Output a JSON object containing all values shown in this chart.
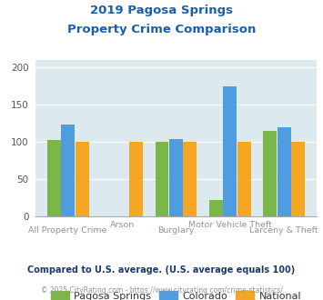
{
  "title_line1": "2019 Pagosa Springs",
  "title_line2": "Property Crime Comparison",
  "categories": [
    "All Property Crime",
    "Arson",
    "Burglary",
    "Motor Vehicle Theft",
    "Larceny & Theft"
  ],
  "pagosa_springs": [
    102,
    0,
    100,
    22,
    115
  ],
  "colorado": [
    123,
    0,
    104,
    175,
    120
  ],
  "national": [
    100,
    100,
    100,
    100,
    100
  ],
  "color_pagosa": "#7ab648",
  "color_colorado": "#4d9de0",
  "color_national": "#f5a623",
  "ylim": [
    0,
    210
  ],
  "yticks": [
    0,
    50,
    100,
    150,
    200
  ],
  "legend_labels": [
    "Pagosa Springs",
    "Colorado",
    "National"
  ],
  "footnote1": "Compared to U.S. average. (U.S. average equals 100)",
  "footnote2": "© 2025 CityRating.com - https://www.cityrating.com/crime-statistics/",
  "bg_color": "#dce9ef",
  "title_color": "#1a5fa8",
  "xlabel_color_bottom": "#9b8fa0",
  "xlabel_color_top": "#9b8fa0",
  "footnote1_color": "#1a3a6b",
  "footnote2_color": "#9b8fa0",
  "legend_text_color": "#333333"
}
